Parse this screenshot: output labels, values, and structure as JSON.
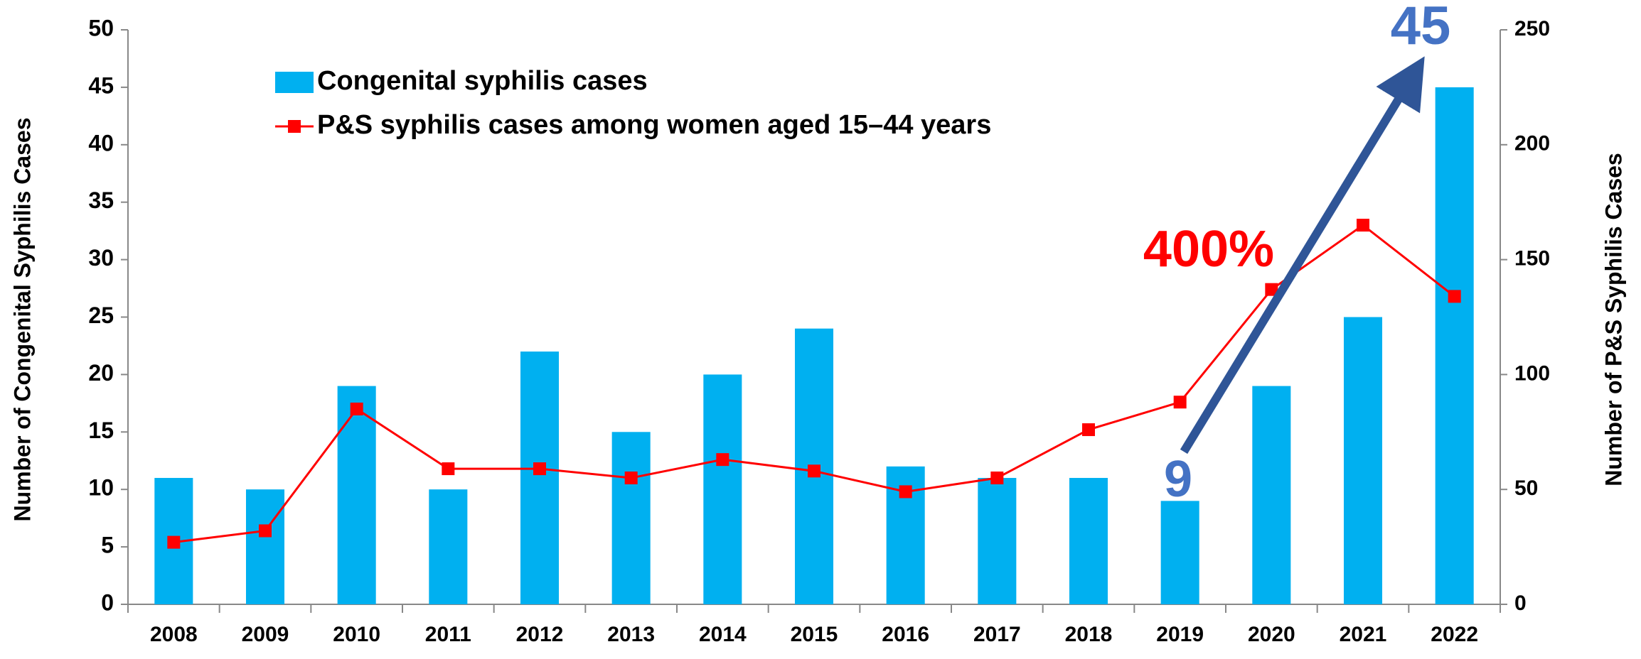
{
  "chart_data": {
    "type": "bar_line",
    "categories": [
      "2008",
      "2009",
      "2010",
      "2011",
      "2012",
      "2013",
      "2014",
      "2015",
      "2016",
      "2017",
      "2018",
      "2019",
      "2020",
      "2021",
      "2022"
    ],
    "series": [
      {
        "name": "Congenital syphilis cases",
        "color": "#00b0f0",
        "type": "bar",
        "values": [
          11,
          10,
          19,
          10,
          22,
          15,
          20,
          24,
          12,
          11,
          11,
          9,
          19,
          25,
          45
        ]
      },
      {
        "name": "P&S syphilis cases among women aged 15–44 years",
        "color": "#ff0000",
        "type": "line",
        "axis": "y2",
        "values": [
          27,
          32,
          85,
          59,
          59,
          55,
          63,
          58,
          49,
          55,
          76,
          88,
          137,
          165,
          134
        ]
      }
    ],
    "ylabel": "Number of Congenital Syphilis Cases",
    "y2label": "Number of P&S Syphilis Cases",
    "ylim": [
      0,
      50
    ],
    "yticks": [
      0,
      5,
      10,
      15,
      20,
      25,
      30,
      35,
      40,
      45,
      50
    ],
    "y2lim": [
      0,
      250
    ],
    "y2ticks": [
      0,
      50,
      100,
      150,
      200,
      250
    ],
    "annotations": [
      "45",
      "9",
      "400%"
    ],
    "legend": "upper-left"
  }
}
